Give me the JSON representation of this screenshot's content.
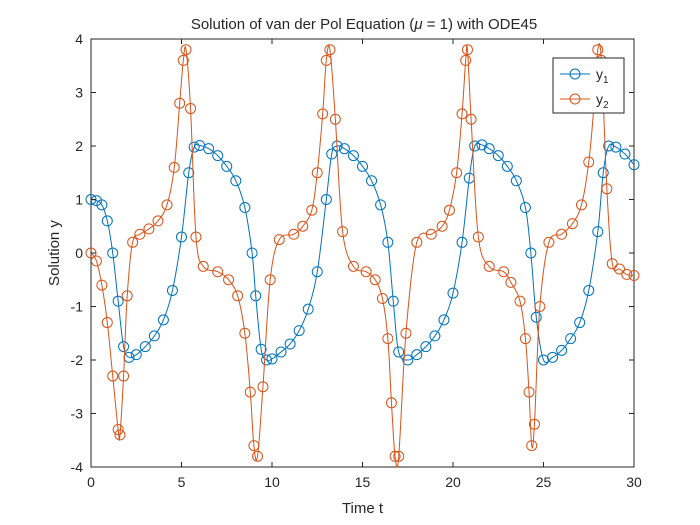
{
  "chart_data": {
    "type": "line",
    "title": "Solution of van der Pol Equation (μ = 1) with ODE45",
    "title_parts": {
      "before": "Solution of van der Pol Equation (",
      "mu": "μ",
      "after": " = 1) with ODE45"
    },
    "xlabel": "Time t",
    "ylabel": "Solution y",
    "xlim": [
      0,
      30
    ],
    "ylim": [
      -4,
      4
    ],
    "xticks": [
      0,
      5,
      10,
      15,
      20,
      25,
      30
    ],
    "yticks": [
      -4,
      -3,
      -2,
      -1,
      0,
      1,
      2,
      3,
      4
    ],
    "grid": false,
    "legend": {
      "position": "top-right",
      "entries": [
        {
          "base": "y",
          "sub": "1"
        },
        {
          "base": "y",
          "sub": "2"
        }
      ]
    },
    "series": [
      {
        "name": "y1",
        "color": "#0072BD",
        "marker": "circle",
        "x": [
          0,
          0.3,
          0.6,
          0.9,
          1.2,
          1.5,
          1.8,
          2.1,
          2.5,
          3.0,
          3.5,
          4.0,
          4.5,
          5.0,
          5.4,
          5.7,
          6.0,
          6.5,
          7.0,
          7.5,
          8.0,
          8.5,
          8.9,
          9.1,
          9.4,
          9.7,
          10.0,
          10.5,
          11.0,
          11.5,
          12.0,
          12.5,
          13.0,
          13.3,
          13.6,
          14.0,
          14.5,
          15.0,
          15.5,
          16.0,
          16.4,
          16.7,
          17.0,
          17.5,
          18.0,
          18.5,
          19.0,
          19.5,
          20.0,
          20.5,
          20.9,
          21.2,
          21.6,
          22.0,
          22.5,
          23.0,
          23.5,
          24.0,
          24.3,
          24.6,
          25.0,
          25.5,
          26.0,
          26.5,
          27.0,
          27.5,
          28.0,
          28.3,
          28.6,
          29.0,
          29.5,
          30.0
        ],
        "y": [
          1.0,
          0.98,
          0.9,
          0.6,
          0.0,
          -0.9,
          -1.75,
          -1.95,
          -1.9,
          -1.75,
          -1.55,
          -1.25,
          -0.7,
          0.3,
          1.5,
          1.98,
          2.01,
          1.95,
          1.82,
          1.62,
          1.35,
          0.85,
          0.0,
          -0.8,
          -1.8,
          -2.0,
          -1.98,
          -1.85,
          -1.7,
          -1.45,
          -1.05,
          -0.35,
          1.0,
          1.85,
          2.0,
          1.95,
          1.82,
          1.62,
          1.35,
          0.9,
          0.2,
          -0.9,
          -1.85,
          -2.0,
          -1.9,
          -1.75,
          -1.55,
          -1.25,
          -0.75,
          0.2,
          1.4,
          2.0,
          2.02,
          1.95,
          1.82,
          1.62,
          1.35,
          0.85,
          0.0,
          -1.2,
          -2.0,
          -1.95,
          -1.82,
          -1.6,
          -1.3,
          -0.7,
          0.4,
          1.5,
          2.0,
          1.98,
          1.85,
          1.65
        ]
      },
      {
        "name": "y2",
        "color": "#D95319",
        "marker": "circle",
        "x": [
          0,
          0.3,
          0.6,
          0.9,
          1.2,
          1.5,
          1.6,
          1.8,
          2.0,
          2.3,
          2.7,
          3.2,
          3.7,
          4.2,
          4.6,
          4.9,
          5.1,
          5.25,
          5.5,
          5.8,
          6.2,
          7.0,
          7.6,
          8.1,
          8.5,
          8.8,
          9.0,
          9.2,
          9.5,
          9.9,
          10.4,
          11.2,
          11.7,
          12.2,
          12.5,
          12.8,
          13.0,
          13.2,
          13.5,
          13.9,
          14.5,
          15.2,
          15.7,
          16.1,
          16.4,
          16.6,
          16.8,
          17.0,
          17.4,
          18.0,
          18.8,
          19.4,
          19.8,
          20.2,
          20.5,
          20.7,
          20.8,
          21.0,
          21.4,
          22.0,
          22.8,
          23.2,
          23.7,
          24.0,
          24.2,
          24.35,
          24.5,
          24.8,
          25.3,
          26.0,
          26.6,
          27.1,
          27.5,
          27.8,
          28.0,
          28.2,
          28.5,
          28.8,
          29.2,
          29.6,
          30.0
        ],
        "y": [
          0.0,
          -0.15,
          -0.6,
          -1.3,
          -2.3,
          -3.3,
          -3.4,
          -2.3,
          -0.8,
          0.2,
          0.35,
          0.45,
          0.6,
          0.9,
          1.6,
          2.8,
          3.6,
          3.8,
          2.7,
          0.3,
          -0.25,
          -0.35,
          -0.5,
          -0.8,
          -1.5,
          -2.6,
          -3.6,
          -3.8,
          -2.5,
          -0.5,
          0.25,
          0.35,
          0.5,
          0.8,
          1.5,
          2.6,
          3.6,
          3.8,
          2.5,
          0.4,
          -0.25,
          -0.35,
          -0.5,
          -0.85,
          -1.6,
          -2.8,
          -3.8,
          -3.8,
          -1.5,
          0.2,
          0.35,
          0.5,
          0.8,
          1.5,
          2.6,
          3.6,
          3.8,
          2.5,
          0.3,
          -0.25,
          -0.35,
          -0.55,
          -0.9,
          -1.6,
          -2.6,
          -3.6,
          -3.2,
          -1.0,
          0.2,
          0.35,
          0.55,
          0.9,
          1.7,
          2.8,
          3.8,
          3.6,
          1.2,
          -0.2,
          -0.3,
          -0.4,
          -0.42
        ]
      }
    ]
  }
}
